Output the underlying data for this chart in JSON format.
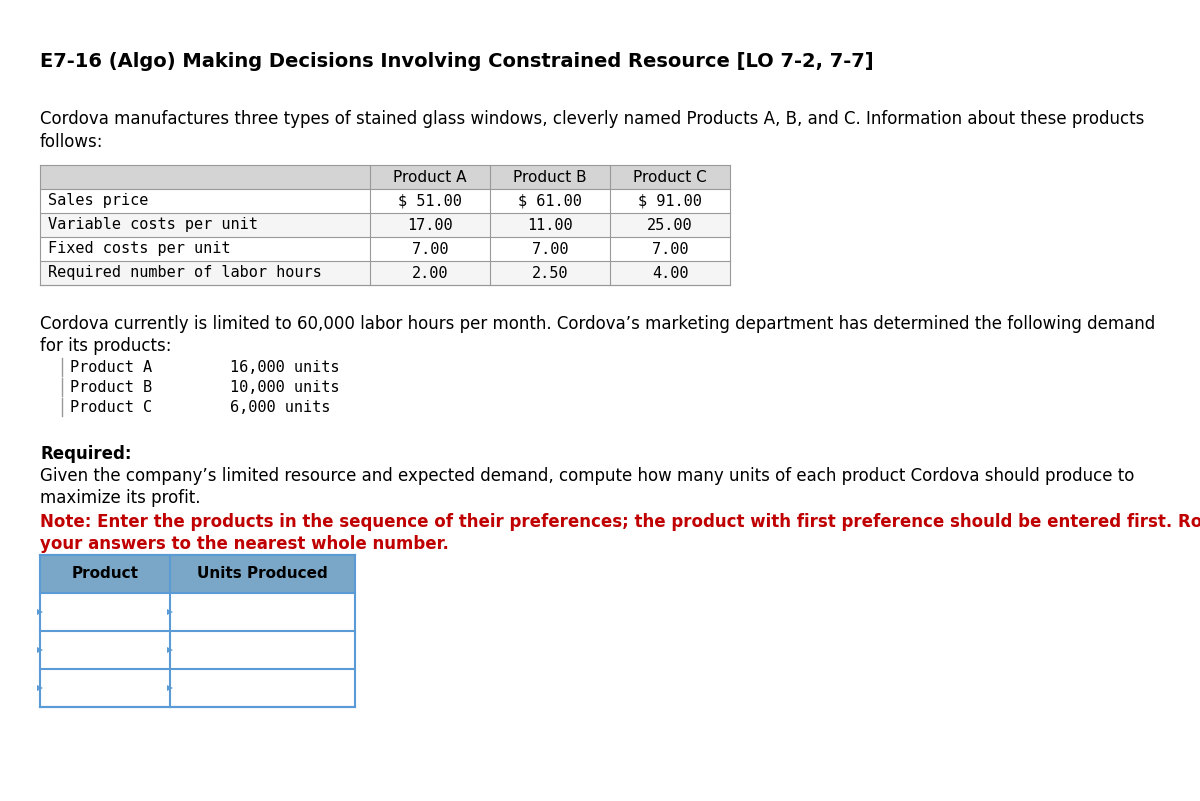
{
  "title": "E7-16 (Algo) Making Decisions Involving Constrained Resource [LO 7-2, 7-7]",
  "intro_text1": "Cordova manufactures three types of stained glass windows, cleverly named Products A, B, and C. Information about these products",
  "intro_text2": "follows:",
  "table1_header": [
    "",
    "Product A",
    "Product B",
    "Product C"
  ],
  "table1_rows": [
    [
      "Sales price",
      "$ 51.00",
      "$ 61.00",
      "$ 91.00"
    ],
    [
      "Variable costs per unit",
      "17.00",
      "11.00",
      "25.00"
    ],
    [
      "Fixed costs per unit",
      "7.00",
      "7.00",
      "7.00"
    ],
    [
      "Required number of labor hours",
      "2.00",
      "2.50",
      "4.00"
    ]
  ],
  "middle_text1": "Cordova currently is limited to 60,000 labor hours per month. Cordova’s marketing department has determined the following demand",
  "middle_text2": "for its products:",
  "demand_rows": [
    [
      "Product A",
      "16,000 units"
    ],
    [
      "Product B",
      "10,000 units"
    ],
    [
      "Product C",
      "6,000 units"
    ]
  ],
  "required_label": "Required:",
  "required_text1": "Given the company’s limited resource and expected demand, compute how many units of each product Cordova should produce to",
  "required_text2": "maximize its profit.",
  "note_text1": "Note: Enter the products in the sequence of their preferences; the product with first preference should be entered first. Round",
  "note_text2": "your answers to the nearest whole number.",
  "table2_header": [
    "Product",
    "Units Produced"
  ],
  "table2_rows": [
    [
      "",
      ""
    ],
    [
      "",
      ""
    ],
    [
      "",
      ""
    ]
  ],
  "bg_color": "#ffffff",
  "table1_header_bg": "#d4d4d4",
  "table2_header_bg": "#7aa7c7",
  "table2_row_bg": "#ffffff",
  "border_color": "#5b9bd5",
  "table1_border": "#999999",
  "note_color": "#c00000",
  "title_fontsize": 14,
  "body_fontsize": 12,
  "mono_fontsize": 11
}
